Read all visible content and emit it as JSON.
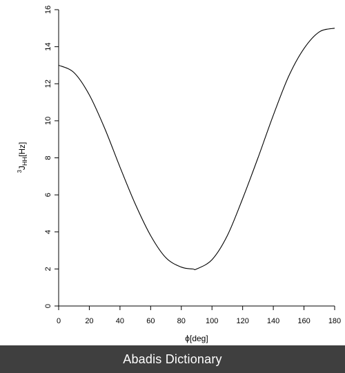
{
  "footer": {
    "text": "Abadis Dictionary",
    "background": "#3f3f3f",
    "color": "#ffffff"
  },
  "chart_data": {
    "type": "line",
    "title": "",
    "xlabel": "ϕ[deg]",
    "ylabel": {
      "superscript": "3",
      "main": "J",
      "subscript": "HH",
      "unit": "[Hz]"
    },
    "xlim": [
      0,
      180
    ],
    "ylim": [
      0,
      16
    ],
    "x_ticks": [
      0,
      20,
      40,
      60,
      80,
      100,
      120,
      140,
      160,
      180
    ],
    "y_ticks": [
      0,
      2,
      4,
      6,
      8,
      10,
      12,
      14,
      16
    ],
    "grid": false,
    "legend": "none",
    "line_color": "#000000",
    "series": [
      {
        "x": [
          0,
          10,
          20,
          30,
          40,
          50,
          60,
          70,
          80,
          87.5,
          90,
          100,
          110,
          120,
          130,
          140,
          150,
          160,
          170,
          180
        ],
        "y": [
          13.0,
          12.6,
          11.4,
          9.6,
          7.5,
          5.5,
          3.8,
          2.6,
          2.1,
          2.0,
          2.0,
          2.5,
          3.8,
          5.8,
          8.0,
          10.3,
          12.4,
          13.9,
          14.8,
          15.0
        ]
      }
    ]
  }
}
